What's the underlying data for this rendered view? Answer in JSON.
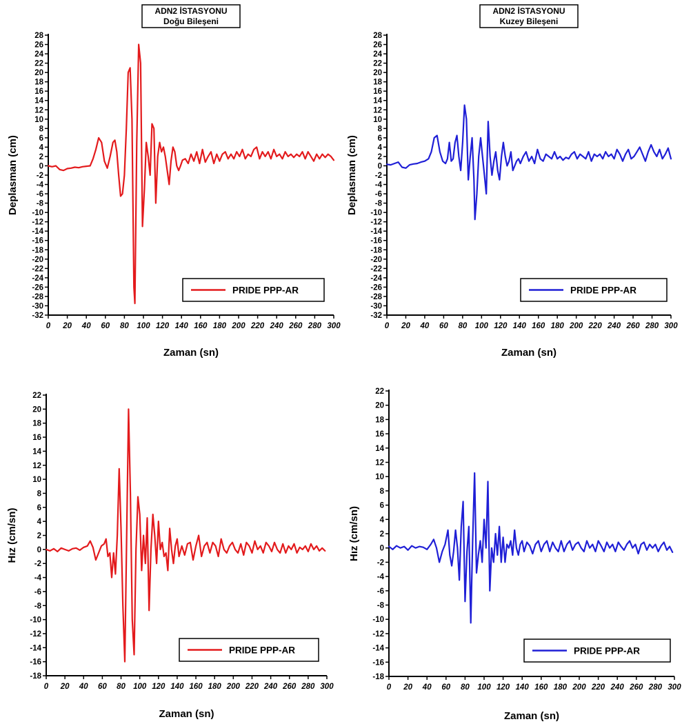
{
  "chart_data": [
    {
      "type": "line",
      "title": "ADN2 İSTASYONU",
      "subtitle": "Doğu Bileşeni",
      "xlabel": "Zaman (sn)",
      "ylabel": "Deplasman (cm)",
      "xlim": [
        0,
        300
      ],
      "ylim": [
        -32,
        28
      ],
      "xtick_step": 20,
      "ytick_step": 2,
      "grid": false,
      "legend": "bottom-right",
      "series": [
        {
          "name": "PRIDE PPP-AR",
          "color": "#e31a1c",
          "x": [
            0,
            4,
            8,
            12,
            16,
            20,
            24,
            28,
            32,
            36,
            40,
            44,
            47,
            50,
            53,
            56,
            59,
            62,
            65,
            68,
            70,
            72,
            74,
            76,
            78,
            80,
            82,
            84,
            86,
            88,
            90,
            91,
            93,
            95,
            97,
            99,
            101,
            103,
            105,
            107,
            109,
            111,
            113,
            115,
            117,
            119,
            121,
            123,
            125,
            127,
            129,
            131,
            133,
            135,
            137,
            139,
            141,
            144,
            147,
            150,
            153,
            156,
            159,
            162,
            165,
            168,
            171,
            174,
            177,
            180,
            183,
            186,
            189,
            192,
            195,
            198,
            201,
            204,
            207,
            210,
            213,
            216,
            219,
            222,
            225,
            228,
            231,
            234,
            237,
            240,
            243,
            246,
            249,
            252,
            255,
            258,
            261,
            264,
            267,
            270,
            273,
            276,
            279,
            282,
            285,
            288,
            291,
            294,
            297,
            300
          ],
          "y": [
            0,
            -0.2,
            0,
            -0.8,
            -1,
            -0.6,
            -0.5,
            -0.3,
            -0.4,
            -0.2,
            -0.1,
            0,
            1.5,
            3.5,
            6,
            5,
            1,
            -0.5,
            2,
            5,
            5.5,
            3,
            -2,
            -6.5,
            -6,
            -2,
            8,
            20,
            21,
            10,
            -26,
            -29.5,
            5,
            26,
            22,
            -13,
            -5,
            5,
            2,
            -2,
            9,
            8,
            -8,
            2,
            5,
            3,
            4,
            2,
            -1,
            -4,
            1,
            4,
            3,
            0,
            -1,
            0,
            1.2,
            1.5,
            0.5,
            2.5,
            1,
            3,
            0.5,
            3.5,
            0.8,
            2,
            3,
            0.5,
            2.5,
            1,
            2.5,
            3,
            1.5,
            2.5,
            1.5,
            3,
            2,
            3.5,
            1.5,
            2.5,
            2,
            3.5,
            4,
            1.5,
            3,
            2,
            3,
            1.5,
            3.5,
            2,
            2.5,
            1.5,
            3,
            2,
            2.5,
            1.8,
            2.5,
            2,
            3,
            1.5,
            3,
            2,
            1,
            2.5,
            1.5,
            2.5,
            1.8,
            2.5,
            2,
            1.2
          ]
        }
      ]
    },
    {
      "type": "line",
      "title": "ADN2 İSTASYONU",
      "subtitle": "Kuzey Bileşeni",
      "xlabel": "Zaman (sn)",
      "ylabel": "Deplasman (cm)",
      "xlim": [
        0,
        300
      ],
      "ylim": [
        -32,
        28
      ],
      "xtick_step": 20,
      "ytick_step": 2,
      "grid": false,
      "legend": "bottom-right",
      "series": [
        {
          "name": "PRIDE PPP-AR",
          "color": "#1f1fd6",
          "x": [
            0,
            4,
            8,
            12,
            16,
            20,
            24,
            28,
            32,
            36,
            40,
            44,
            47,
            50,
            53,
            56,
            59,
            62,
            64,
            66,
            68,
            70,
            72,
            74,
            76,
            78,
            80,
            82,
            84,
            86,
            88,
            90,
            92,
            93,
            95,
            97,
            99,
            101,
            103,
            105,
            107,
            109,
            111,
            113,
            115,
            117,
            119,
            121,
            123,
            125,
            127,
            129,
            131,
            133,
            135,
            137,
            139,
            141,
            144,
            147,
            150,
            153,
            156,
            159,
            162,
            165,
            168,
            171,
            174,
            177,
            180,
            183,
            186,
            189,
            192,
            195,
            198,
            201,
            204,
            207,
            210,
            213,
            216,
            219,
            222,
            225,
            228,
            231,
            234,
            237,
            240,
            243,
            246,
            249,
            252,
            255,
            258,
            261,
            264,
            267,
            270,
            273,
            276,
            279,
            282,
            285,
            288,
            291,
            294,
            297,
            300
          ],
          "y": [
            0.3,
            0.2,
            0.5,
            0.8,
            -0.3,
            -0.5,
            0.2,
            0.4,
            0.5,
            0.8,
            1,
            1.5,
            3,
            6,
            6.5,
            3,
            1,
            0.5,
            1.5,
            5,
            1,
            1.5,
            5,
            6.5,
            2,
            -1,
            5,
            13,
            10,
            -3,
            2,
            6,
            -3,
            -11.5,
            -6,
            2,
            6,
            2,
            -2,
            -6,
            9.5,
            2,
            -2,
            1,
            3,
            -1,
            -3,
            2,
            5,
            2,
            0,
            1,
            3,
            -1,
            0,
            1,
            1.5,
            0.5,
            2,
            3,
            1,
            2,
            0.5,
            3.5,
            1.5,
            1,
            2.5,
            2,
            1.5,
            3,
            1.5,
            2,
            1.2,
            1.8,
            1.5,
            2.5,
            3,
            1.5,
            2.5,
            2,
            1.5,
            3,
            1,
            2.5,
            2,
            2.5,
            1.5,
            3,
            2,
            2.5,
            1.5,
            3.5,
            2.5,
            1,
            2.5,
            3.5,
            1.5,
            2,
            3,
            4,
            2.5,
            1,
            3,
            4.5,
            3,
            2,
            3.5,
            1.5,
            2.5,
            3.8,
            1.5
          ]
        }
      ]
    },
    {
      "type": "line",
      "title": "",
      "xlabel": "Zaman (sn)",
      "ylabel": "Hız (cm/sn)",
      "xlim": [
        0,
        300
      ],
      "ylim": [
        -18,
        22
      ],
      "xtick_step": 20,
      "ytick_step": 2,
      "grid": false,
      "legend": "bottom-right",
      "series": [
        {
          "name": "PRIDE PPP-AR",
          "color": "#e31a1c",
          "x": [
            0,
            4,
            8,
            12,
            16,
            20,
            24,
            28,
            32,
            36,
            40,
            44,
            47,
            50,
            53,
            56,
            59,
            62,
            64,
            66,
            68,
            70,
            72,
            74,
            76,
            78,
            80,
            82,
            84,
            86,
            88,
            90,
            92,
            94,
            96,
            98,
            100,
            102,
            104,
            106,
            108,
            110,
            112,
            114,
            116,
            118,
            120,
            122,
            124,
            126,
            128,
            130,
            132,
            134,
            136,
            138,
            140,
            142,
            145,
            148,
            151,
            154,
            157,
            160,
            163,
            166,
            169,
            172,
            175,
            178,
            181,
            184,
            187,
            190,
            193,
            196,
            199,
            202,
            205,
            208,
            211,
            214,
            217,
            220,
            223,
            226,
            229,
            232,
            235,
            238,
            241,
            244,
            247,
            250,
            253,
            256,
            259,
            262,
            265,
            268,
            271,
            274,
            277,
            280,
            283,
            286,
            289,
            292,
            295,
            298
          ],
          "y": [
            0,
            -0.2,
            0.1,
            -0.3,
            0.2,
            0,
            -0.2,
            0.1,
            0.2,
            -0.1,
            0.3,
            0.5,
            1.2,
            0.3,
            -1.5,
            -0.5,
            0.5,
            0.8,
            1.5,
            -1,
            -0.5,
            -4,
            -0.5,
            -3.5,
            2,
            11.5,
            3,
            -8,
            -16,
            2,
            20,
            8,
            -10,
            -15,
            0,
            7.5,
            5,
            -3,
            2,
            -2,
            4.5,
            -8.7,
            0,
            5,
            2,
            -2,
            4,
            0,
            1,
            -1,
            -0.5,
            -3,
            3,
            0,
            -2,
            0.5,
            1.5,
            -1,
            0.5,
            -0.8,
            0.8,
            1,
            -1.5,
            0.5,
            2,
            -1,
            0.5,
            1,
            -0.5,
            1,
            0.5,
            -1,
            1.5,
            0,
            -0.5,
            0.5,
            1,
            0,
            -0.5,
            0.8,
            -0.8,
            1,
            0.5,
            -0.5,
            1.2,
            0,
            0.5,
            -0.5,
            1,
            0.5,
            -0.3,
            1,
            0,
            -0.5,
            0.8,
            -0.5,
            0.5,
            0,
            0.8,
            -0.5,
            0.3,
            0,
            0.5,
            -0.3,
            0.8,
            0,
            0.5,
            -0.2,
            0.2,
            -0.2
          ]
        }
      ]
    },
    {
      "type": "line",
      "title": "",
      "xlabel": "Zaman (sn)",
      "ylabel": "Hız (cm/sn)",
      "xlim": [
        0,
        300
      ],
      "ylim": [
        -18,
        22
      ],
      "xtick_step": 20,
      "ytick_step": 2,
      "grid": false,
      "legend": "bottom-right",
      "series": [
        {
          "name": "PRIDE PPP-AR",
          "color": "#1f1fd6",
          "x": [
            0,
            4,
            8,
            12,
            16,
            20,
            24,
            28,
            32,
            36,
            40,
            44,
            47,
            50,
            53,
            56,
            59,
            62,
            64,
            66,
            68,
            70,
            72,
            74,
            76,
            78,
            80,
            82,
            84,
            86,
            88,
            90,
            92,
            94,
            96,
            98,
            100,
            102,
            104,
            106,
            108,
            110,
            112,
            114,
            116,
            118,
            120,
            122,
            124,
            126,
            128,
            130,
            132,
            134,
            136,
            138,
            140,
            142,
            145,
            148,
            151,
            154,
            157,
            160,
            163,
            166,
            169,
            172,
            175,
            178,
            181,
            184,
            187,
            190,
            193,
            196,
            199,
            202,
            205,
            208,
            211,
            214,
            217,
            220,
            223,
            226,
            229,
            232,
            235,
            238,
            241,
            244,
            247,
            250,
            253,
            256,
            259,
            262,
            265,
            268,
            271,
            274,
            277,
            280,
            283,
            286,
            289,
            292,
            295,
            298
          ],
          "y": [
            0.2,
            -0.2,
            0.3,
            0,
            0.2,
            -0.3,
            0.3,
            0,
            0.2,
            0.1,
            -0.2,
            0.5,
            1.2,
            0,
            -2,
            -0.5,
            0.5,
            2.5,
            -1,
            -2.5,
            -0.5,
            2.5,
            0,
            -4.5,
            3,
            6.5,
            -7.5,
            -0.5,
            3,
            -10.5,
            1,
            10.5,
            -3.5,
            -1,
            1,
            -2,
            4,
            0,
            9.3,
            -6,
            0,
            -2,
            2,
            -1,
            3,
            -2,
            1.5,
            -2,
            0.5,
            0,
            1,
            -1,
            2.5,
            0,
            -1,
            0.5,
            1,
            -0.5,
            0.8,
            0.3,
            -0.8,
            0.5,
            1,
            -0.5,
            0.5,
            1,
            -0.5,
            0.8,
            0,
            -0.5,
            1,
            -0.5,
            0.5,
            1,
            -0.3,
            0.5,
            0.8,
            0,
            -0.5,
            1,
            0,
            0.5,
            -0.5,
            1,
            0.3,
            -0.5,
            0.8,
            0,
            0.5,
            -0.5,
            0.8,
            0.2,
            -0.3,
            0.5,
            1,
            0,
            0.5,
            -0.8,
            0.5,
            0.8,
            -0.3,
            0.5,
            0,
            0.5,
            -0.5,
            0.3,
            0.8,
            -0.3,
            0.2,
            -0.6
          ]
        }
      ]
    }
  ]
}
